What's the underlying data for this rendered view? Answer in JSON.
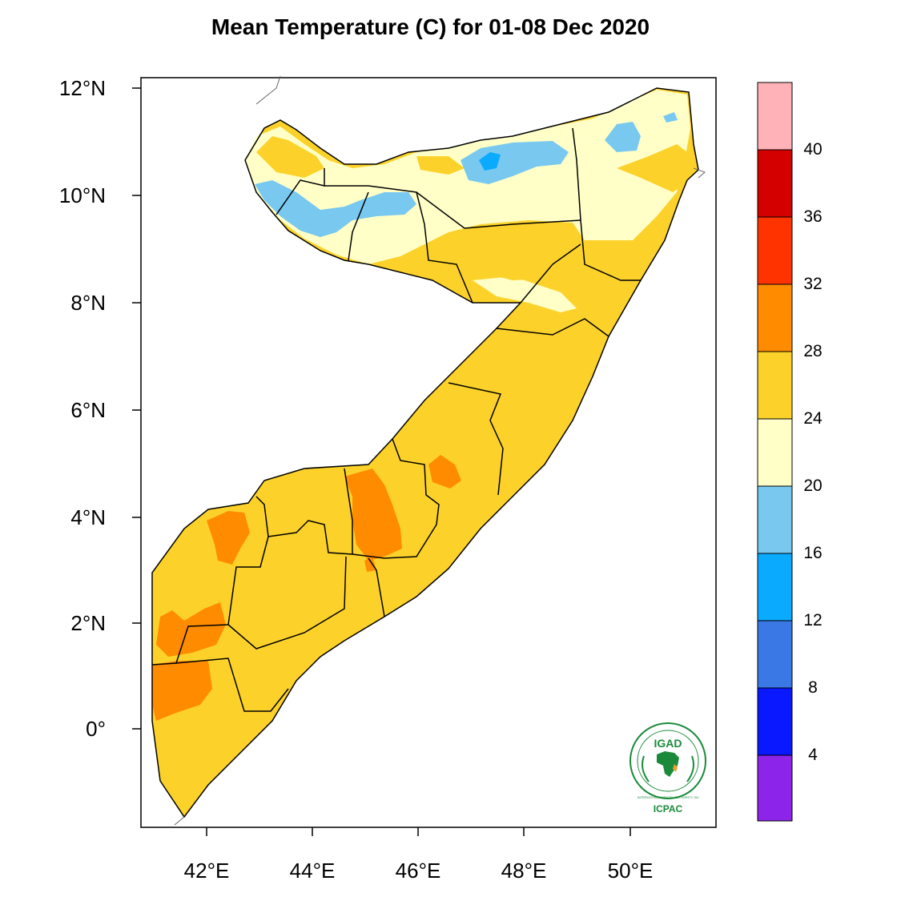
{
  "title": "Mean Temperature (C) for 01-08 Dec 2020",
  "axes": {
    "lat_labels": [
      "12°N",
      "10°N",
      "8°N",
      "6°N",
      "4°N",
      "2°N",
      "0°"
    ],
    "lon_labels": [
      "42°E",
      "44°E",
      "46°E",
      "48°E",
      "50°E"
    ]
  },
  "colorbar": {
    "labels": [
      "40",
      "36",
      "32",
      "28",
      "24",
      "20",
      "16",
      "12",
      "8",
      "4"
    ],
    "colors": [
      "#ffb3b8",
      "#d40000",
      "#ff3300",
      "#ff8c00",
      "#fcd22a",
      "#ffffc7",
      "#78c8f0",
      "#0aaaff",
      "#3a78e6",
      "#0a18ff",
      "#8c24ea"
    ]
  },
  "logo": {
    "main_text": "IGAD",
    "ring_text": "INTERGOVERNMENTAL AUTHORITY ON DEVELOPMENT • AUTORITE INTERGOUVERNEMENTALE POUR LE DEVELOPPEMENT",
    "bottom_text": "ICPAC"
  }
}
